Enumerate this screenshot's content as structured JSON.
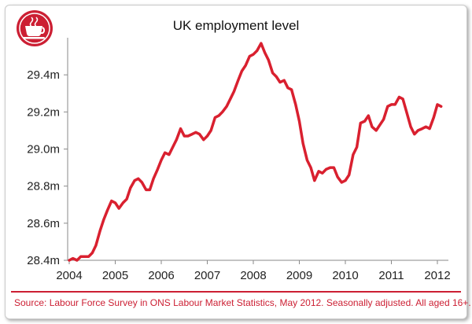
{
  "chart_data": {
    "type": "line",
    "title": "UK employment level",
    "xlabel": "",
    "ylabel": "",
    "xlim": [
      2004,
      2012.2
    ],
    "ylim": [
      28.4,
      29.6
    ],
    "x_ticks": [
      "2004",
      "2005",
      "2006",
      "2007",
      "2008",
      "2009",
      "2010",
      "2011",
      "2012"
    ],
    "y_ticks": [
      "28.4m",
      "28.6m",
      "28.8m",
      "29.0m",
      "29.2m",
      "29.4m"
    ],
    "grid": false,
    "series": [
      {
        "name": "",
        "color": "#d9202f",
        "x": [
          2004.0,
          2004.08,
          2004.17,
          2004.25,
          2004.33,
          2004.42,
          2004.5,
          2004.58,
          2004.67,
          2004.75,
          2004.83,
          2004.92,
          2005.0,
          2005.08,
          2005.17,
          2005.25,
          2005.33,
          2005.42,
          2005.5,
          2005.58,
          2005.67,
          2005.75,
          2005.83,
          2005.92,
          2006.0,
          2006.08,
          2006.17,
          2006.25,
          2006.33,
          2006.42,
          2006.5,
          2006.58,
          2006.67,
          2006.75,
          2006.83,
          2006.92,
          2007.0,
          2007.08,
          2007.17,
          2007.25,
          2007.33,
          2007.42,
          2007.5,
          2007.58,
          2007.67,
          2007.75,
          2007.83,
          2007.92,
          2008.0,
          2008.08,
          2008.17,
          2008.25,
          2008.33,
          2008.42,
          2008.5,
          2008.58,
          2008.67,
          2008.75,
          2008.83,
          2008.92,
          2009.0,
          2009.08,
          2009.17,
          2009.25,
          2009.33,
          2009.42,
          2009.5,
          2009.58,
          2009.67,
          2009.75,
          2009.83,
          2009.92,
          2010.0,
          2010.08,
          2010.17,
          2010.25,
          2010.33,
          2010.42,
          2010.5,
          2010.58,
          2010.67,
          2010.75,
          2010.83,
          2010.92,
          2011.0,
          2011.08,
          2011.17,
          2011.25,
          2011.33,
          2011.42,
          2011.5,
          2011.58,
          2011.67,
          2011.75,
          2011.83,
          2011.92,
          2012.0,
          2012.08
        ],
        "values": [
          28.4,
          28.41,
          28.4,
          28.42,
          28.42,
          28.42,
          28.44,
          28.48,
          28.56,
          28.62,
          28.67,
          28.72,
          28.71,
          28.68,
          28.71,
          28.73,
          28.79,
          28.83,
          28.84,
          28.82,
          28.78,
          28.78,
          28.84,
          28.89,
          28.94,
          28.98,
          28.97,
          29.01,
          29.05,
          29.11,
          29.07,
          29.07,
          29.08,
          29.09,
          29.08,
          29.05,
          29.07,
          29.1,
          29.17,
          29.18,
          29.2,
          29.23,
          29.27,
          29.31,
          29.37,
          29.42,
          29.45,
          29.5,
          29.51,
          29.53,
          29.57,
          29.52,
          29.48,
          29.41,
          29.39,
          29.36,
          29.37,
          29.33,
          29.32,
          29.24,
          29.15,
          29.03,
          28.94,
          28.9,
          28.83,
          28.88,
          28.87,
          28.89,
          28.9,
          28.9,
          28.85,
          28.82,
          28.83,
          28.86,
          28.97,
          29.01,
          29.14,
          29.15,
          29.18,
          29.12,
          29.1,
          29.13,
          29.16,
          29.23,
          29.24,
          29.24,
          29.28,
          29.27,
          29.2,
          29.12,
          29.08,
          29.1,
          29.11,
          29.12,
          29.11,
          29.17,
          29.24,
          29.23
        ]
      }
    ]
  },
  "source_note": "Source: Labour Force Survey in ONS Labour Market Statistics, May 2012. Seasonally adjusted. All aged 16+.",
  "logo": {
    "icon": "teacup-icon",
    "color": "#cc1f33"
  }
}
